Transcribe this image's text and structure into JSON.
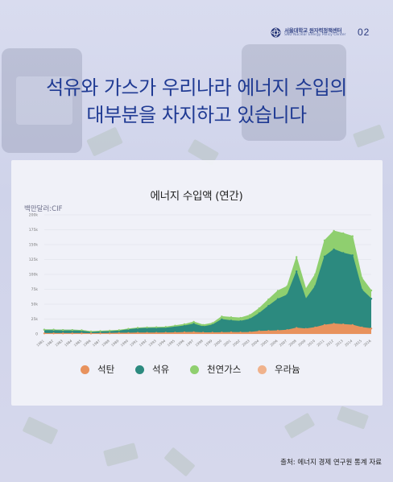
{
  "header": {
    "org_name_ko": "서울대학교 원자력정책센터",
    "org_name_en": "SNU Nuclear Energy Policy Center",
    "page_number": "02"
  },
  "headline": {
    "line1": "석유와 가스가 우리나라 에너지 수입의",
    "line2": "대부분을 차지하고 있습니다"
  },
  "chart_data": {
    "type": "area",
    "title": "에너지 수입액 (연간)",
    "ylabel": "백만달러:CIF",
    "xlabel": "",
    "ylim": [
      0,
      200000
    ],
    "yticks": [
      "0",
      "25k",
      "50k",
      "75k",
      "100k",
      "125k",
      "150k",
      "175k",
      "200k"
    ],
    "x": [
      "1981",
      "1982",
      "1983",
      "1984",
      "1985",
      "1986",
      "1987",
      "1988",
      "1989",
      "1990",
      "1991",
      "1992",
      "1993",
      "1994",
      "1995",
      "1996",
      "1997",
      "1998",
      "1999",
      "2000",
      "2001",
      "2002",
      "2003",
      "2004",
      "2005",
      "2006",
      "2007",
      "2008",
      "2009",
      "2010",
      "2011",
      "2012",
      "2013",
      "2014",
      "2015",
      "2016"
    ],
    "stacked": true,
    "grid": true,
    "legend_position": "bottom",
    "series": [
      {
        "name": "석탄",
        "color": "#e8925d",
        "values": [
          1000,
          1000,
          1000,
          1000,
          1000,
          800,
          900,
          1100,
          1300,
          1500,
          1700,
          1700,
          1800,
          1900,
          2200,
          2500,
          2800,
          2200,
          2100,
          2300,
          2500,
          2400,
          2800,
          4500,
          5000,
          5500,
          6500,
          10000,
          8500,
          11000,
          15000,
          17000,
          16000,
          15000,
          11000,
          9000
        ]
      },
      {
        "name": "석유",
        "color": "#2c8a7f",
        "values": [
          6000,
          6000,
          5500,
          5500,
          5000,
          3000,
          3500,
          3800,
          4300,
          6000,
          7500,
          8000,
          8000,
          8000,
          9500,
          11000,
          14000,
          10000,
          13000,
          22000,
          20000,
          19000,
          22000,
          30000,
          42000,
          53000,
          59000,
          95000,
          50000,
          69000,
          115000,
          125000,
          120000,
          117000,
          63000,
          50000
        ]
      },
      {
        "name": "천연가스",
        "color": "#8fcf6f",
        "values": [
          0,
          0,
          0,
          0,
          200,
          300,
          400,
          500,
          800,
          1000,
          1100,
          1200,
          1400,
          1800,
          2200,
          2700,
          3500,
          3000,
          3000,
          5000,
          5500,
          5500,
          6800,
          8500,
          11000,
          14000,
          14500,
          24000,
          17000,
          20000,
          27000,
          31000,
          33000,
          32000,
          20000,
          14000
        ]
      },
      {
        "name": "우라늄",
        "color": "#f0b28c",
        "values": [
          0,
          0,
          0,
          0,
          0,
          0,
          0,
          0,
          0,
          0,
          0,
          0,
          0,
          0,
          0,
          0,
          0,
          0,
          0,
          0,
          0,
          0,
          0,
          0,
          0,
          0,
          0,
          0,
          0,
          0,
          0,
          0,
          0,
          0,
          0,
          0
        ]
      }
    ]
  },
  "source": "출처: 에너지 경제 연구원 통계 자료"
}
